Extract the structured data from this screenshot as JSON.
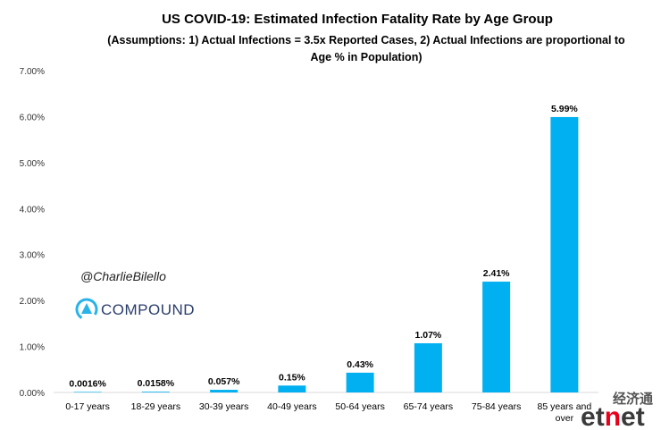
{
  "chart_data": {
    "type": "bar",
    "title": "US COVID-19: Estimated Infection Fatality Rate by Age Group",
    "subtitle_lines": [
      "(Assumptions: 1) Actual Infections = 3.5x Reported Cases, 2) Actual Infections are proportional to",
      "Age % in Population)"
    ],
    "categories": [
      [
        "0-17 years"
      ],
      [
        "18-29 years"
      ],
      [
        "30-39 years"
      ],
      [
        "40-49 years"
      ],
      [
        "50-64 years"
      ],
      [
        "65-74 years"
      ],
      [
        "75-84 years"
      ],
      [
        "85 years and",
        "over"
      ]
    ],
    "values": [
      0.0016,
      0.0158,
      0.057,
      0.15,
      0.43,
      1.07,
      2.41,
      5.99
    ],
    "data_labels": [
      "0.0016%",
      "0.0158%",
      "0.057%",
      "0.15%",
      "0.43%",
      "1.07%",
      "2.41%",
      "5.99%"
    ],
    "y_ticks": [
      "0.00%",
      "1.00%",
      "2.00%",
      "3.00%",
      "4.00%",
      "5.00%",
      "6.00%",
      "7.00%"
    ],
    "ylim": [
      0,
      7
    ],
    "grid": false,
    "bar_color": "#00b0f0"
  },
  "watermark": {
    "handle": "@CharlieBilello",
    "brand": "COMPOUND",
    "logo_icon": "compound-logo-icon",
    "brand_color": "#2a3d6b"
  },
  "site_logo": {
    "cn": "经济通",
    "en": "etnet",
    "accent": "#e8001c"
  }
}
